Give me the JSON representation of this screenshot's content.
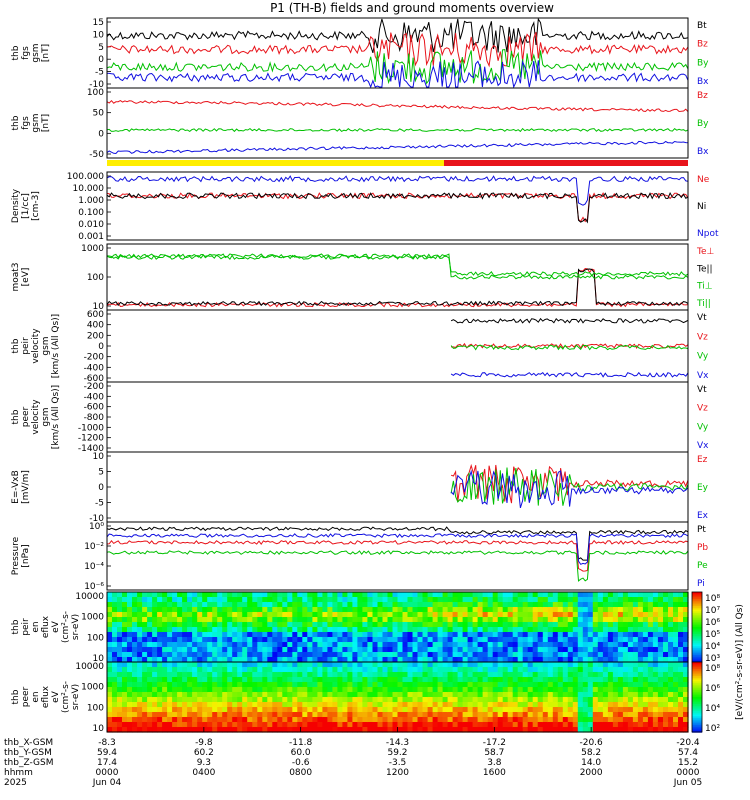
{
  "title": "P1 (TH-B) fields and ground moments overview",
  "chart_data": [
    {
      "type": "line",
      "id": "fgs_gsm",
      "ylabel": [
        "thb",
        "fgs",
        "gsm",
        "[nT]"
      ],
      "ylim": [
        -15,
        16
      ],
      "ticks": [
        "15",
        "10",
        "5",
        "0",
        "-5",
        "-10"
      ],
      "legend": [
        {
          "name": "Bt",
          "color": "#000000"
        },
        {
          "name": "Bz",
          "color": "#e8141b"
        },
        {
          "name": "By",
          "color": "#00c000"
        },
        {
          "name": "Bx",
          "color": "#1010e0"
        }
      ]
    },
    {
      "type": "line",
      "id": "fgs_gse",
      "ylabel": [
        "thb",
        "fgs",
        "gsm",
        "[nT]"
      ],
      "ylim": [
        -70,
        105
      ],
      "ticks": [
        "100",
        "50",
        "0",
        "-50"
      ],
      "legend": [
        {
          "name": "Bz",
          "color": "#e8141b"
        },
        {
          "name": "By",
          "color": "#00c000"
        },
        {
          "name": "Bx",
          "color": "#1010e0"
        }
      ]
    },
    {
      "type": "line",
      "id": "density",
      "ylabel": [
        "Density",
        "[1/cc]",
        "[cm-3]"
      ],
      "log": true,
      "ticks": [
        "100.000",
        "10.000",
        "1.000",
        "0.100",
        "0.010",
        "0.001"
      ],
      "legend": [
        {
          "name": "Ne",
          "color": "#e8141b"
        },
        {
          "name": "Ni",
          "color": "#000000"
        },
        {
          "name": "Npot",
          "color": "#1010e0"
        }
      ]
    },
    {
      "type": "line",
      "id": "temp",
      "ylabel": [
        "moat3",
        "[eV]"
      ],
      "log": true,
      "ticks": [
        "1000",
        "100",
        "10"
      ],
      "legend": [
        {
          "name": "Te⊥",
          "color": "#e8141b"
        },
        {
          "name": "Te||",
          "color": "#000000"
        },
        {
          "name": "Ti⊥",
          "color": "#00c000"
        },
        {
          "name": "Ti||",
          "color": "#00c000"
        }
      ]
    },
    {
      "type": "line",
      "id": "peir_vel",
      "ylabel": [
        "thb",
        "peir",
        "velocity",
        "gsm",
        "[km/s (All Qs)]"
      ],
      "ylim": [
        -700,
        800
      ],
      "ticks": [
        "600",
        "400",
        "200",
        "0",
        "-200",
        "-400",
        "-600"
      ],
      "legend": [
        {
          "name": "Vt",
          "color": "#000000"
        },
        {
          "name": "Vz",
          "color": "#e8141b"
        },
        {
          "name": "Vy",
          "color": "#00c000"
        },
        {
          "name": "Vx",
          "color": "#1010e0"
        }
      ]
    },
    {
      "type": "line",
      "id": "peer_vel",
      "ylabel": [
        "thb",
        "peer",
        "velocity",
        "gsm",
        "[km/s (All Qs)]"
      ],
      "ylim": [
        -1500,
        -150
      ],
      "ticks": [
        "-200",
        "-400",
        "-600",
        "-800",
        "-1000",
        "-1200",
        "-1400"
      ],
      "legend": [
        {
          "name": "Vt",
          "color": "#000000"
        },
        {
          "name": "Vz",
          "color": "#e8141b"
        },
        {
          "name": "Vy",
          "color": "#00c000"
        },
        {
          "name": "Vx",
          "color": "#1010e0"
        }
      ]
    },
    {
      "type": "line",
      "id": "efield",
      "ylabel": [
        "E=-VxB",
        "[mV/m]"
      ],
      "ylim": [
        -12,
        12
      ],
      "ticks": [
        "10",
        "5",
        "0",
        "-5",
        "-10"
      ],
      "legend": [
        {
          "name": "Ez",
          "color": "#e8141b"
        },
        {
          "name": "Ey",
          "color": "#00c000"
        },
        {
          "name": "Ex",
          "color": "#1010e0"
        }
      ]
    },
    {
      "type": "line",
      "id": "pressure",
      "ylabel": [
        "Pressure",
        "[nPa]"
      ],
      "log": true,
      "ticks": [
        "10⁰",
        "10⁻²",
        "10⁻⁴",
        "10⁻⁶"
      ],
      "legend": [
        {
          "name": "Pt",
          "color": "#000000"
        },
        {
          "name": "Pb",
          "color": "#e8141b"
        },
        {
          "name": "Pe",
          "color": "#00c000"
        },
        {
          "name": "Pi",
          "color": "#1010e0"
        }
      ]
    },
    {
      "type": "heatmap",
      "id": "peir_eflux",
      "ylabel": [
        "thb",
        "peir",
        "en",
        "eflux",
        "eV",
        "(cm²-s-",
        "sr-eV)"
      ],
      "ticks": [
        "10000",
        "1000",
        "100",
        "10"
      ]
    },
    {
      "type": "heatmap",
      "id": "peer_eflux",
      "ylabel": [
        "thb",
        "peer",
        "en",
        "eflux",
        "eV",
        "(cm²-s-",
        "sr-eV)"
      ],
      "ticks": [
        "10000",
        "1000",
        "100",
        "10"
      ]
    }
  ],
  "colorbar": {
    "label": "[eV/(cm²-s-sr-eV)] (All Qs)",
    "top_ticks": [
      "10⁸",
      "10⁷",
      "10⁶",
      "10⁵",
      "10⁴",
      "10³"
    ],
    "bottom_ticks": [
      "10⁸",
      "10⁶",
      "10⁴",
      "10²"
    ]
  },
  "x_axis": {
    "positions": [
      0,
      0.1667,
      0.3333,
      0.5,
      0.6667,
      0.8333,
      1.0
    ],
    "row_labels": [
      "thb_X-GSM",
      "thb_Y-GSM",
      "thb_Z-GSM",
      "hhmm",
      "2025"
    ],
    "columns": [
      [
        "-8.3",
        "59.4",
        "17.4",
        "0000",
        "Jun 04"
      ],
      [
        "-9.8",
        "60.2",
        "9.3",
        "0400",
        ""
      ],
      [
        "-11.8",
        "60.0",
        "-0.6",
        "0800",
        ""
      ],
      [
        "-14.3",
        "59.2",
        "-3.5",
        "1200",
        ""
      ],
      [
        "-17.2",
        "58.7",
        "3.8",
        "1600",
        ""
      ],
      [
        "-20.6",
        "58.2",
        "14.0",
        "2000",
        ""
      ],
      [
        "-20.4",
        "57.4",
        "15.2",
        "0000",
        "Jun 05"
      ]
    ]
  }
}
